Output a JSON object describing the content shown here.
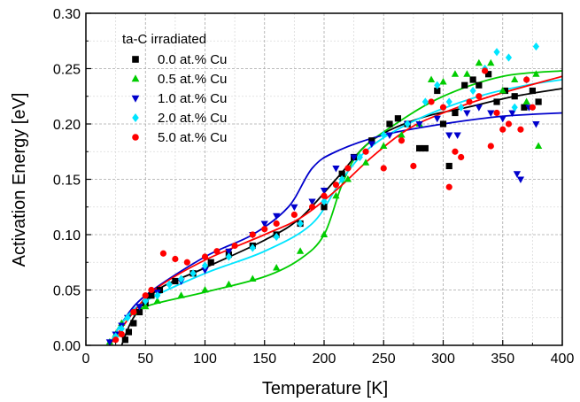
{
  "chart_data": {
    "type": "scatter",
    "xlabel": "Temperature [K]",
    "ylabel": "Activation Energy [eV]",
    "xlim": [
      0,
      400
    ],
    "ylim": [
      0.0,
      0.3
    ],
    "x_major_ticks": [
      0,
      50,
      100,
      150,
      200,
      250,
      300,
      350,
      400
    ],
    "y_major_ticks": [
      0.0,
      0.05,
      0.1,
      0.15,
      0.2,
      0.25,
      0.3
    ],
    "x_tick_labels": [
      "0",
      "50",
      "100",
      "150",
      "200",
      "250",
      "300",
      "350",
      "400"
    ],
    "y_tick_labels": [
      "0.00",
      "0.05",
      "0.10",
      "0.15",
      "0.20",
      "0.25",
      "0.30"
    ],
    "grid": "major and minor, dotted",
    "legend": {
      "title": "ta-C irradiated",
      "placement": "top-left"
    },
    "series": [
      {
        "name": "0.0 at.% Cu",
        "marker": "square",
        "color": "#000000",
        "points": [
          [
            33,
            0.005
          ],
          [
            36,
            0.012
          ],
          [
            40,
            0.02
          ],
          [
            45,
            0.03
          ],
          [
            50,
            0.038
          ],
          [
            55,
            0.045
          ],
          [
            62,
            0.05
          ],
          [
            75,
            0.058
          ],
          [
            90,
            0.065
          ],
          [
            105,
            0.075
          ],
          [
            120,
            0.082
          ],
          [
            140,
            0.09
          ],
          [
            160,
            0.1
          ],
          [
            180,
            0.11
          ],
          [
            200,
            0.125
          ],
          [
            215,
            0.155
          ],
          [
            225,
            0.17
          ],
          [
            240,
            0.185
          ],
          [
            255,
            0.2
          ],
          [
            262,
            0.205
          ],
          [
            270,
            0.2
          ],
          [
            280,
            0.178
          ],
          [
            285,
            0.178
          ],
          [
            295,
            0.23
          ],
          [
            300,
            0.2
          ],
          [
            305,
            0.162
          ],
          [
            310,
            0.21
          ],
          [
            318,
            0.235
          ],
          [
            325,
            0.24
          ],
          [
            330,
            0.235
          ],
          [
            338,
            0.245
          ],
          [
            345,
            0.22
          ],
          [
            352,
            0.23
          ],
          [
            360,
            0.225
          ],
          [
            368,
            0.215
          ],
          [
            375,
            0.23
          ],
          [
            380,
            0.22
          ]
        ],
        "fit": [
          [
            30,
            0.0
          ],
          [
            40,
            0.025
          ],
          [
            60,
            0.05
          ],
          [
            100,
            0.07
          ],
          [
            150,
            0.095
          ],
          [
            180,
            0.115
          ],
          [
            210,
            0.15
          ],
          [
            240,
            0.185
          ],
          [
            280,
            0.205
          ],
          [
            320,
            0.215
          ],
          [
            360,
            0.225
          ],
          [
            400,
            0.232
          ]
        ]
      },
      {
        "name": "0.5 at.% Cu",
        "marker": "triangle-up",
        "color": "#00cc00",
        "points": [
          [
            20,
            0.003
          ],
          [
            25,
            0.01
          ],
          [
            30,
            0.02
          ],
          [
            40,
            0.03
          ],
          [
            50,
            0.035
          ],
          [
            60,
            0.04
          ],
          [
            80,
            0.045
          ],
          [
            100,
            0.05
          ],
          [
            120,
            0.055
          ],
          [
            140,
            0.06
          ],
          [
            160,
            0.07
          ],
          [
            180,
            0.085
          ],
          [
            200,
            0.1
          ],
          [
            210,
            0.135
          ],
          [
            220,
            0.15
          ],
          [
            235,
            0.165
          ],
          [
            250,
            0.18
          ],
          [
            265,
            0.19
          ],
          [
            280,
            0.2
          ],
          [
            290,
            0.24
          ],
          [
            300,
            0.238
          ],
          [
            310,
            0.245
          ],
          [
            320,
            0.245
          ],
          [
            330,
            0.255
          ],
          [
            340,
            0.255
          ],
          [
            350,
            0.23
          ],
          [
            360,
            0.24
          ],
          [
            370,
            0.22
          ],
          [
            378,
            0.245
          ],
          [
            380,
            0.18
          ]
        ],
        "fit": [
          [
            20,
            0.0
          ],
          [
            30,
            0.02
          ],
          [
            50,
            0.035
          ],
          [
            100,
            0.048
          ],
          [
            150,
            0.062
          ],
          [
            180,
            0.078
          ],
          [
            200,
            0.1
          ],
          [
            215,
            0.145
          ],
          [
            230,
            0.175
          ],
          [
            260,
            0.2
          ],
          [
            300,
            0.225
          ],
          [
            350,
            0.243
          ],
          [
            400,
            0.248
          ]
        ]
      },
      {
        "name": "1.0 at.% Cu",
        "marker": "triangle-down",
        "color": "#0000cc",
        "points": [
          [
            20,
            0.003
          ],
          [
            25,
            0.01
          ],
          [
            30,
            0.018
          ],
          [
            35,
            0.025
          ],
          [
            45,
            0.035
          ],
          [
            60,
            0.048
          ],
          [
            80,
            0.058
          ],
          [
            100,
            0.068
          ],
          [
            120,
            0.085
          ],
          [
            140,
            0.1
          ],
          [
            150,
            0.11
          ],
          [
            160,
            0.117
          ],
          [
            175,
            0.125
          ],
          [
            190,
            0.13
          ],
          [
            200,
            0.14
          ],
          [
            210,
            0.16
          ],
          [
            225,
            0.17
          ],
          [
            240,
            0.182
          ],
          [
            255,
            0.19
          ],
          [
            270,
            0.2
          ],
          [
            280,
            0.2
          ],
          [
            295,
            0.205
          ],
          [
            305,
            0.19
          ],
          [
            312,
            0.19
          ],
          [
            320,
            0.21
          ],
          [
            330,
            0.215
          ],
          [
            340,
            0.21
          ],
          [
            350,
            0.205
          ],
          [
            358,
            0.21
          ],
          [
            362,
            0.155
          ],
          [
            365,
            0.15
          ],
          [
            372,
            0.215
          ],
          [
            378,
            0.2
          ]
        ],
        "fit": [
          [
            20,
            0.0
          ],
          [
            30,
            0.02
          ],
          [
            50,
            0.045
          ],
          [
            100,
            0.08
          ],
          [
            140,
            0.1
          ],
          [
            170,
            0.125
          ],
          [
            190,
            0.16
          ],
          [
            210,
            0.175
          ],
          [
            250,
            0.19
          ],
          [
            300,
            0.2
          ],
          [
            350,
            0.207
          ],
          [
            400,
            0.21
          ]
        ]
      },
      {
        "name": "2.0 at.% Cu",
        "marker": "diamond",
        "color": "#00e5ff",
        "points": [
          [
            25,
            0.008
          ],
          [
            30,
            0.015
          ],
          [
            35,
            0.025
          ],
          [
            40,
            0.03
          ],
          [
            50,
            0.04
          ],
          [
            60,
            0.045
          ],
          [
            70,
            0.055
          ],
          [
            80,
            0.06
          ],
          [
            90,
            0.065
          ],
          [
            100,
            0.072
          ],
          [
            120,
            0.08
          ],
          [
            140,
            0.088
          ],
          [
            160,
            0.098
          ],
          [
            180,
            0.11
          ],
          [
            200,
            0.13
          ],
          [
            215,
            0.15
          ],
          [
            230,
            0.17
          ],
          [
            250,
            0.19
          ],
          [
            270,
            0.2
          ],
          [
            285,
            0.22
          ],
          [
            295,
            0.235
          ],
          [
            305,
            0.22
          ],
          [
            315,
            0.215
          ],
          [
            325,
            0.23
          ],
          [
            335,
            0.25
          ],
          [
            345,
            0.265
          ],
          [
            355,
            0.26
          ],
          [
            360,
            0.215
          ],
          [
            370,
            0.24
          ],
          [
            378,
            0.27
          ]
        ],
        "fit": [
          [
            20,
            0.0
          ],
          [
            30,
            0.02
          ],
          [
            50,
            0.04
          ],
          [
            100,
            0.065
          ],
          [
            150,
            0.085
          ],
          [
            190,
            0.11
          ],
          [
            215,
            0.15
          ],
          [
            240,
            0.18
          ],
          [
            280,
            0.205
          ],
          [
            330,
            0.225
          ],
          [
            370,
            0.235
          ],
          [
            400,
            0.24
          ]
        ]
      },
      {
        "name": "5.0 at.% Cu",
        "marker": "circle",
        "color": "#ff0000",
        "points": [
          [
            25,
            0.005
          ],
          [
            30,
            0.01
          ],
          [
            40,
            0.03
          ],
          [
            50,
            0.045
          ],
          [
            55,
            0.05
          ],
          [
            65,
            0.083
          ],
          [
            75,
            0.078
          ],
          [
            85,
            0.075
          ],
          [
            100,
            0.08
          ],
          [
            110,
            0.085
          ],
          [
            125,
            0.09
          ],
          [
            140,
            0.1
          ],
          [
            150,
            0.105
          ],
          [
            160,
            0.11
          ],
          [
            175,
            0.118
          ],
          [
            190,
            0.125
          ],
          [
            200,
            0.135
          ],
          [
            210,
            0.145
          ],
          [
            220,
            0.16
          ],
          [
            235,
            0.175
          ],
          [
            250,
            0.16
          ],
          [
            265,
            0.185
          ],
          [
            275,
            0.162
          ],
          [
            290,
            0.22
          ],
          [
            300,
            0.215
          ],
          [
            305,
            0.143
          ],
          [
            310,
            0.175
          ],
          [
            315,
            0.17
          ],
          [
            322,
            0.22
          ],
          [
            330,
            0.225
          ],
          [
            335,
            0.248
          ],
          [
            340,
            0.18
          ],
          [
            345,
            0.21
          ],
          [
            350,
            0.195
          ],
          [
            355,
            0.2
          ],
          [
            365,
            0.195
          ],
          [
            370,
            0.24
          ],
          [
            375,
            0.215
          ]
        ],
        "fit": [
          [
            20,
            0.0
          ],
          [
            40,
            0.03
          ],
          [
            60,
            0.052
          ],
          [
            100,
            0.077
          ],
          [
            150,
            0.1
          ],
          [
            180,
            0.115
          ],
          [
            210,
            0.14
          ],
          [
            240,
            0.17
          ],
          [
            270,
            0.195
          ],
          [
            300,
            0.21
          ],
          [
            340,
            0.225
          ],
          [
            400,
            0.243
          ]
        ]
      }
    ]
  }
}
